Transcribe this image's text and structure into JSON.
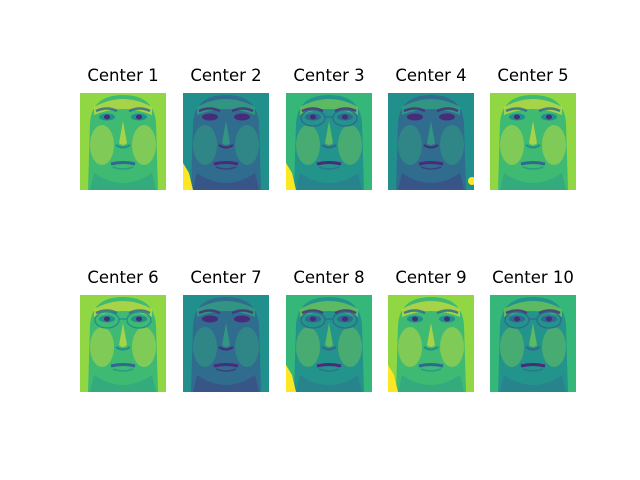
{
  "figure": {
    "panels": [
      {
        "title": "Center 1",
        "face_image": "face-center-1",
        "tone": "bright",
        "glasses": false,
        "artifact": "none"
      },
      {
        "title": "Center 2",
        "face_image": "face-center-2",
        "tone": "dark",
        "glasses": false,
        "artifact": "bottom-left"
      },
      {
        "title": "Center 3",
        "face_image": "face-center-3",
        "tone": "medium",
        "glasses": true,
        "artifact": "bottom-left"
      },
      {
        "title": "Center 4",
        "face_image": "face-center-4",
        "tone": "dark",
        "glasses": false,
        "artifact": "bottom-right"
      },
      {
        "title": "Center 5",
        "face_image": "face-center-5",
        "tone": "bright",
        "glasses": false,
        "artifact": "none"
      },
      {
        "title": "Center 6",
        "face_image": "face-center-6",
        "tone": "bright",
        "glasses": true,
        "artifact": "none"
      },
      {
        "title": "Center 7",
        "face_image": "face-center-7",
        "tone": "dark",
        "glasses": false,
        "artifact": "none"
      },
      {
        "title": "Center 8",
        "face_image": "face-center-8",
        "tone": "medium",
        "glasses": true,
        "artifact": "bottom-left"
      },
      {
        "title": "Center 9",
        "face_image": "face-center-9",
        "tone": "bright",
        "glasses": false,
        "artifact": "bottom-left"
      },
      {
        "title": "Center 10",
        "face_image": "face-center-10",
        "tone": "medium",
        "glasses": true,
        "artifact": "none"
      }
    ],
    "colormap": {
      "dark": "#31688e",
      "mid": "#21908d",
      "green": "#35b779",
      "light": "#90d743",
      "bright": "#fde725",
      "deep": "#472c7a"
    }
  }
}
